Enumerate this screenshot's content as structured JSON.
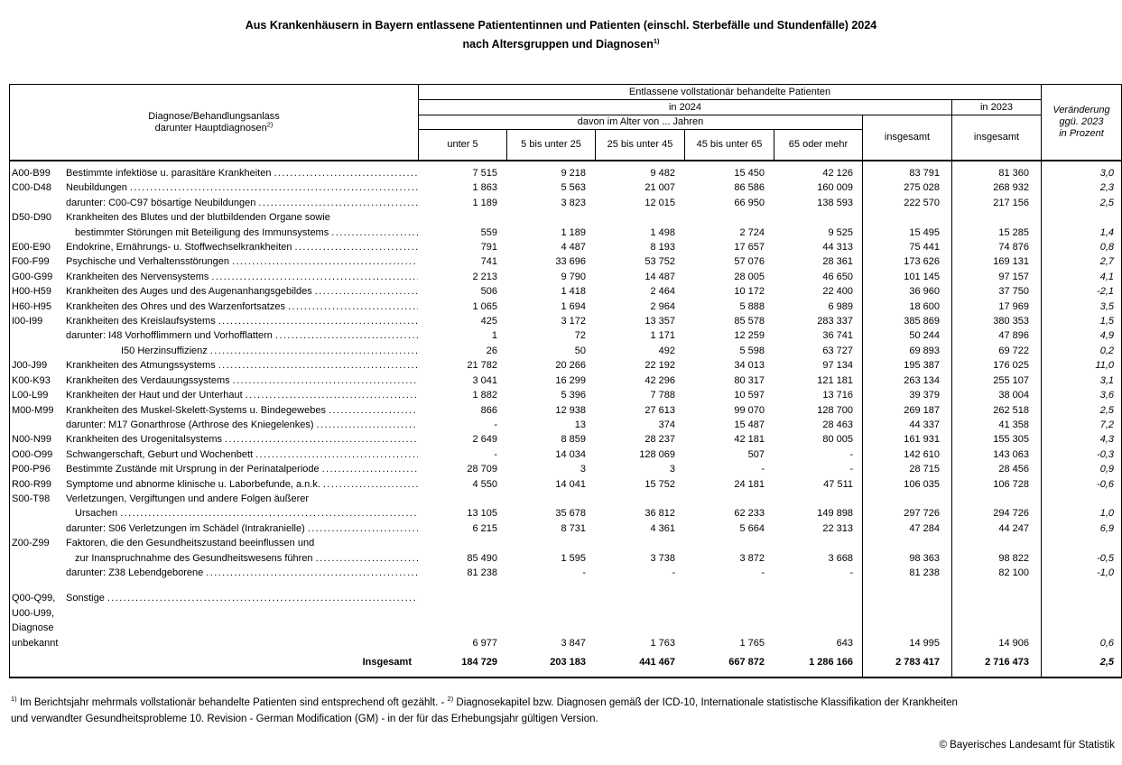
{
  "title": {
    "line1": "Aus Krankenhäusern in Bayern entlassene Patiententinnen und Patienten (einschl. Sterbefälle und Stundenfälle) 2024",
    "line2": "nach Altersgruppen und Diagnosen",
    "footnote_marker": "1)"
  },
  "table": {
    "header": {
      "diagnose_line1": "Diagnose/Behandlungsanlass",
      "diagnose_line2": "darunter Hauptdiagnosen",
      "diagnose_marker": "2)",
      "entlassene": "Entlassene vollstationär behandelte Patienten",
      "in_2024": "in 2024",
      "in_2023": "in 2023",
      "davon": "davon im Alter von ... Jahren",
      "age_groups": [
        "unter 5",
        "5 bis unter 25",
        "25 bis unter 45",
        "45 bis unter 65",
        "65 oder mehr"
      ],
      "insgesamt_2024": "insgesamt",
      "insgesamt_2023": "insgesamt",
      "veraenderung": "Veränderung\nggü. 2023\nin Prozent"
    },
    "rows": [
      {
        "code": [
          "A00-B99"
        ],
        "lines": [
          {
            "t": "Bestimmte infektiöse u. parasitäre Krankheiten",
            "ind": 0,
            "dots": true
          }
        ],
        "v": [
          "7 515",
          "9 218",
          "9 482",
          "15 450",
          "42 126",
          "83 791",
          "81 360",
          "3,0"
        ]
      },
      {
        "code": [
          "C00-D48"
        ],
        "lines": [
          {
            "t": "Neubildungen",
            "ind": 0,
            "dots": true
          }
        ],
        "v": [
          "1 863",
          "5 563",
          "21 007",
          "86 586",
          "160 009",
          "275 028",
          "268 932",
          "2,3"
        ]
      },
      {
        "code": [],
        "lines": [
          {
            "t": "darunter: C00-C97 bösartige Neubildungen",
            "ind": 0,
            "dots": true
          }
        ],
        "v": [
          "1 189",
          "3 823",
          "12 015",
          "66 950",
          "138 593",
          "222 570",
          "217 156",
          "2,5"
        ]
      },
      {
        "code": [
          "D50-D90"
        ],
        "lines": [
          {
            "t": "Krankheiten des Blutes und der blutbildenden Organe sowie",
            "ind": 0,
            "dots": false
          },
          {
            "t": "bestimmter Störungen mit Beteiligung des Immunsystems",
            "ind": 1,
            "dots": true
          }
        ],
        "v": [
          "559",
          "1 189",
          "1 498",
          "2 724",
          "9 525",
          "15 495",
          "15 285",
          "1,4"
        ]
      },
      {
        "code": [
          "E00-E90"
        ],
        "lines": [
          {
            "t": "Endokrine, Ernährungs- u. Stoffwechselkrankheiten",
            "ind": 0,
            "dots": true
          }
        ],
        "v": [
          "791",
          "4 487",
          "8 193",
          "17 657",
          "44 313",
          "75 441",
          "74 876",
          "0,8"
        ]
      },
      {
        "code": [
          "F00-F99"
        ],
        "lines": [
          {
            "t": "Psychische und Verhaltensstörungen",
            "ind": 0,
            "dots": true
          }
        ],
        "v": [
          "741",
          "33 696",
          "53 752",
          "57 076",
          "28 361",
          "173 626",
          "169 131",
          "2,7"
        ]
      },
      {
        "code": [
          "G00-G99"
        ],
        "lines": [
          {
            "t": "Krankheiten des Nervensystems",
            "ind": 0,
            "dots": true
          }
        ],
        "v": [
          "2 213",
          "9 790",
          "14 487",
          "28 005",
          "46 650",
          "101 145",
          "97 157",
          "4,1"
        ]
      },
      {
        "code": [
          "H00-H59"
        ],
        "lines": [
          {
            "t": "Krankheiten des Auges und des Augenanhangsgebildes",
            "ind": 0,
            "dots": true
          }
        ],
        "v": [
          "506",
          "1 418",
          "2 464",
          "10 172",
          "22 400",
          "36 960",
          "37 750",
          "-2,1"
        ]
      },
      {
        "code": [
          "H60-H95"
        ],
        "lines": [
          {
            "t": "Krankheiten des Ohres und des Warzenfortsatzes",
            "ind": 0,
            "dots": true
          }
        ],
        "v": [
          "1 065",
          "1 694",
          "2 964",
          "5 888",
          "6 989",
          "18 600",
          "17 969",
          "3,5"
        ]
      },
      {
        "code": [
          "I00-I99"
        ],
        "lines": [
          {
            "t": "Krankheiten des Kreislaufsystems",
            "ind": 0,
            "dots": true
          }
        ],
        "v": [
          "425",
          "3 172",
          "13 357",
          "85 578",
          "283 337",
          "385 869",
          "380 353",
          "1,5"
        ]
      },
      {
        "code": [],
        "lines": [
          {
            "t": "darunter: I48 Vorhofflimmern und Vorhofflattern",
            "ind": 0,
            "dots": true
          }
        ],
        "v": [
          "1",
          "72",
          "1 171",
          "12 259",
          "36 741",
          "50 244",
          "47 896",
          "4,9"
        ]
      },
      {
        "code": [],
        "lines": [
          {
            "t": "I50 Herzinsuffizienz",
            "ind": 2,
            "dots": true
          }
        ],
        "v": [
          "26",
          "50",
          "492",
          "5 598",
          "63 727",
          "69 893",
          "69 722",
          "0,2"
        ]
      },
      {
        "code": [
          "J00-J99"
        ],
        "lines": [
          {
            "t": "Krankheiten des Atmungssystems",
            "ind": 0,
            "dots": true
          }
        ],
        "v": [
          "21 782",
          "20 266",
          "22 192",
          "34 013",
          "97 134",
          "195 387",
          "176 025",
          "11,0"
        ]
      },
      {
        "code": [
          "K00-K93"
        ],
        "lines": [
          {
            "t": "Krankheiten des Verdauungssystems",
            "ind": 0,
            "dots": true
          }
        ],
        "v": [
          "3 041",
          "16 299",
          "42 296",
          "80 317",
          "121 181",
          "263 134",
          "255 107",
          "3,1"
        ]
      },
      {
        "code": [
          "L00-L99"
        ],
        "lines": [
          {
            "t": "Krankheiten der Haut und der Unterhaut",
            "ind": 0,
            "dots": true
          }
        ],
        "v": [
          "1 882",
          "5 396",
          "7 788",
          "10 597",
          "13 716",
          "39 379",
          "38 004",
          "3,6"
        ]
      },
      {
        "code": [
          "M00-M99"
        ],
        "lines": [
          {
            "t": "Krankheiten des Muskel-Skelett-Systems u. Bindegewebes",
            "ind": 0,
            "dots": true
          }
        ],
        "v": [
          "866",
          "12 938",
          "27 613",
          "99 070",
          "128 700",
          "269 187",
          "262 518",
          "2,5"
        ]
      },
      {
        "code": [],
        "lines": [
          {
            "t": "darunter: M17 Gonarthrose (Arthrose des Kniegelenkes)",
            "ind": 0,
            "dots": true
          }
        ],
        "v": [
          "-",
          "13",
          "374",
          "15 487",
          "28 463",
          "44 337",
          "41 358",
          "7,2"
        ]
      },
      {
        "code": [
          "N00-N99"
        ],
        "lines": [
          {
            "t": "Krankheiten des Urogenitalsystems",
            "ind": 0,
            "dots": true
          }
        ],
        "v": [
          "2 649",
          "8 859",
          "28 237",
          "42 181",
          "80 005",
          "161 931",
          "155 305",
          "4,3"
        ]
      },
      {
        "code": [
          "O00-O99"
        ],
        "lines": [
          {
            "t": "Schwangerschaft, Geburt und Wochenbett",
            "ind": 0,
            "dots": true
          }
        ],
        "v": [
          "-",
          "14 034",
          "128 069",
          "507",
          "-",
          "142 610",
          "143 063",
          "-0,3"
        ]
      },
      {
        "code": [
          "P00-P96"
        ],
        "lines": [
          {
            "t": "Bestimmte Zustände mit Ursprung in der Perinatalperiode",
            "ind": 0,
            "dots": true
          }
        ],
        "v": [
          "28 709",
          "3",
          "3",
          "-",
          "-",
          "28 715",
          "28 456",
          "0,9"
        ]
      },
      {
        "code": [
          "R00-R99"
        ],
        "lines": [
          {
            "t": "Symptome und abnorme klinische u. Laborbefunde, a.n.k.",
            "ind": 0,
            "dots": true
          }
        ],
        "v": [
          "4 550",
          "14 041",
          "15 752",
          "24 181",
          "47 511",
          "106 035",
          "106 728",
          "-0,6"
        ]
      },
      {
        "code": [
          "S00-T98"
        ],
        "lines": [
          {
            "t": "Verletzungen, Vergiftungen und andere Folgen äußerer",
            "ind": 0,
            "dots": false
          },
          {
            "t": "Ursachen",
            "ind": 1,
            "dots": true
          }
        ],
        "v": [
          "13 105",
          "35 678",
          "36 812",
          "62 233",
          "149 898",
          "297 726",
          "294 726",
          "1,0"
        ]
      },
      {
        "code": [],
        "lines": [
          {
            "t": "darunter: S06 Verletzungen im Schädel (Intrakranielle)",
            "ind": 0,
            "dots": true
          }
        ],
        "v": [
          "6 215",
          "8 731",
          "4 361",
          "5 664",
          "22 313",
          "47 284",
          "44 247",
          "6,9"
        ]
      },
      {
        "code": [
          "Z00-Z99"
        ],
        "lines": [
          {
            "t": "Faktoren, die den Gesundheitszustand beeinflussen und",
            "ind": 0,
            "dots": false
          },
          {
            "t": "zur Inanspruchnahme des Gesundheitswesens führen",
            "ind": 1,
            "dots": true
          }
        ],
        "v": [
          "85 490",
          "1 595",
          "3 738",
          "3 872",
          "3 668",
          "98 363",
          "98 822",
          "-0,5"
        ]
      },
      {
        "code": [],
        "lines": [
          {
            "t": "darunter: Z38 Lebendgeborene",
            "ind": 0,
            "dots": true
          }
        ],
        "v": [
          "81 238",
          "-",
          "-",
          "-",
          "-",
          "81 238",
          "82 100",
          "-1,0"
        ]
      },
      {
        "code": [
          "Q00-Q99,",
          "U00-U99,",
          "Diagnose",
          "unbekannt"
        ],
        "gap": 12,
        "lines": [
          {
            "t": "Sonstige",
            "ind": 0,
            "dots": true
          }
        ],
        "v": [
          "6 977",
          "3 847",
          "1 763",
          "1 765",
          "643",
          "14 995",
          "14 906",
          "0,6"
        ]
      },
      {
        "code": [],
        "gap": 5,
        "total": true,
        "lines": [
          {
            "t": "Insgesamt",
            "ind": 0,
            "dots": false
          }
        ],
        "v": [
          "184 729",
          "203 183",
          "441 467",
          "667 872",
          "1 286 166",
          "2 783 417",
          "2 716 473",
          "2,5"
        ]
      }
    ]
  },
  "footnotes": {
    "marker1": "1)",
    "text1": " Im Berichtsjahr mehrmals vollstationär behandelte Patienten sind entsprechend oft gezählt. - ",
    "marker2": "2)",
    "text2": " Diagnosekapitel bzw. Diagnosen gemäß der ICD-10,  Internationale statistische Klassifikation der Krankheiten und verwandter Gesundheitsprobleme 10. Revision - German Modification (GM) - in der für das Erhebungsjahr gültigen Version."
  },
  "copyright": "© Bayerisches Landesamt für Statistik"
}
